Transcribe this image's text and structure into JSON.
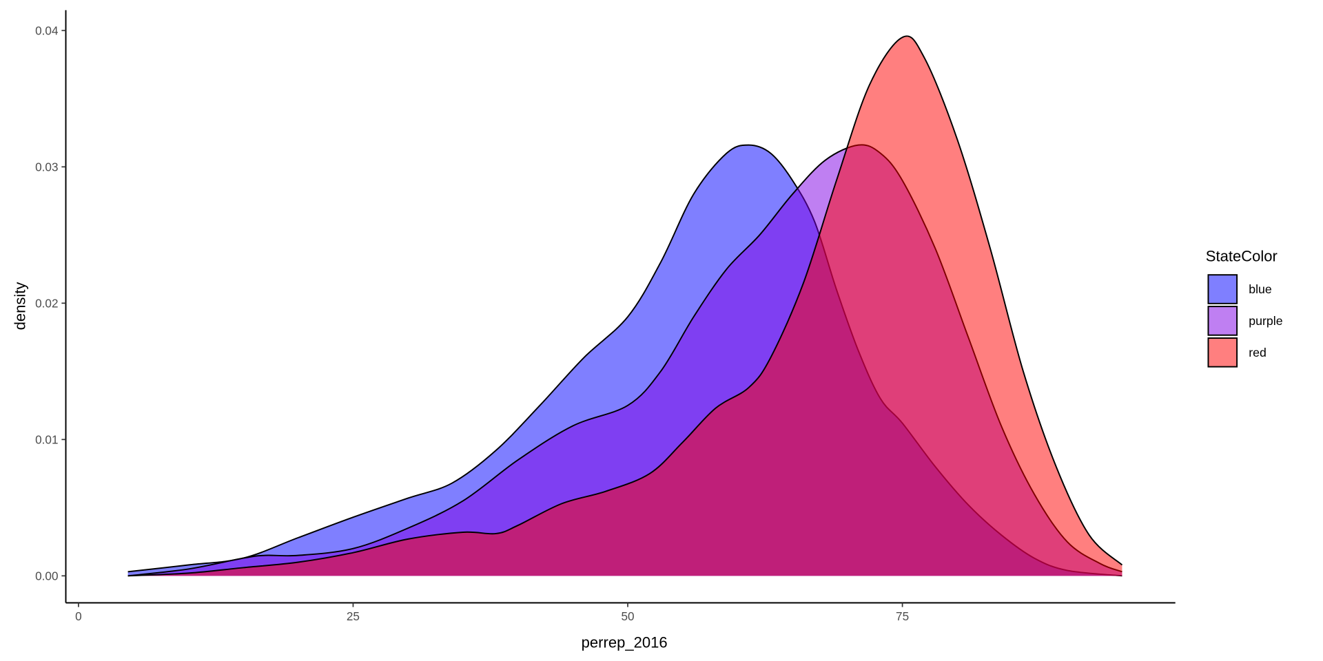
{
  "chart_data": {
    "type": "area",
    "subtype": "density",
    "title": "",
    "xlabel": "perrep_2016",
    "ylabel": "density",
    "xlim": [
      -1.15,
      99.9
    ],
    "ylim": [
      -0.002,
      0.0415
    ],
    "xticks": [
      0,
      25,
      50,
      75
    ],
    "xtick_labels": [
      "0",
      "25",
      "50",
      "75"
    ],
    "yticks": [
      0,
      0.01,
      0.02,
      0.03,
      0.04
    ],
    "ytick_labels": [
      "0.00",
      "0.01",
      "0.02",
      "0.03",
      "0.04"
    ],
    "grid": false,
    "legend": {
      "title": "StateColor",
      "position": "right"
    },
    "series": [
      {
        "name": "blue",
        "color": "#0000ff",
        "alpha": 0.5,
        "outline": "#000000",
        "x": [
          4.5,
          10,
          15,
          20,
          25,
          30,
          34,
          38,
          42,
          46,
          50,
          53,
          56,
          59,
          61,
          63,
          65,
          67,
          69,
          71,
          73,
          75,
          78,
          81,
          84,
          87,
          90,
          95
        ],
        "y": [
          0.0003,
          0.0008,
          0.0013,
          0.0028,
          0.0043,
          0.0057,
          0.0068,
          0.0092,
          0.0125,
          0.016,
          0.019,
          0.023,
          0.028,
          0.031,
          0.0316,
          0.031,
          0.029,
          0.026,
          0.021,
          0.0165,
          0.013,
          0.0112,
          0.008,
          0.0052,
          0.003,
          0.0013,
          0.0004,
          0.0
        ]
      },
      {
        "name": "purple",
        "color": "#8000e6",
        "alpha": 0.5,
        "outline": "#000000",
        "x": [
          4.5,
          10,
          15,
          17,
          20,
          25,
          30,
          35,
          40,
          45,
          50,
          53,
          56,
          59,
          62,
          65,
          68,
          71,
          73,
          75,
          78,
          81,
          84,
          87,
          90,
          93,
          95
        ],
        "y": [
          0.0,
          0.0005,
          0.0013,
          0.0015,
          0.0015,
          0.002,
          0.0035,
          0.0055,
          0.0085,
          0.011,
          0.0125,
          0.015,
          0.019,
          0.0225,
          0.025,
          0.028,
          0.0305,
          0.0316,
          0.031,
          0.029,
          0.024,
          0.0175,
          0.011,
          0.006,
          0.0025,
          0.0009,
          0.0003
        ]
      },
      {
        "name": "red",
        "color": "#ff0000",
        "alpha": 0.5,
        "outline": "#000000",
        "x": [
          4.5,
          10,
          15,
          20,
          25,
          30,
          35,
          38,
          40,
          44,
          48,
          52,
          55,
          58,
          61,
          63,
          66,
          69,
          72,
          75,
          77,
          80,
          83,
          86,
          89,
          92,
          95
        ],
        "y": [
          0.0,
          0.0002,
          0.0006,
          0.001,
          0.0017,
          0.0027,
          0.0032,
          0.0031,
          0.0037,
          0.0053,
          0.0062,
          0.0075,
          0.0098,
          0.0123,
          0.0138,
          0.016,
          0.0215,
          0.029,
          0.036,
          0.0395,
          0.038,
          0.032,
          0.024,
          0.015,
          0.008,
          0.003,
          0.0008
        ]
      }
    ]
  }
}
